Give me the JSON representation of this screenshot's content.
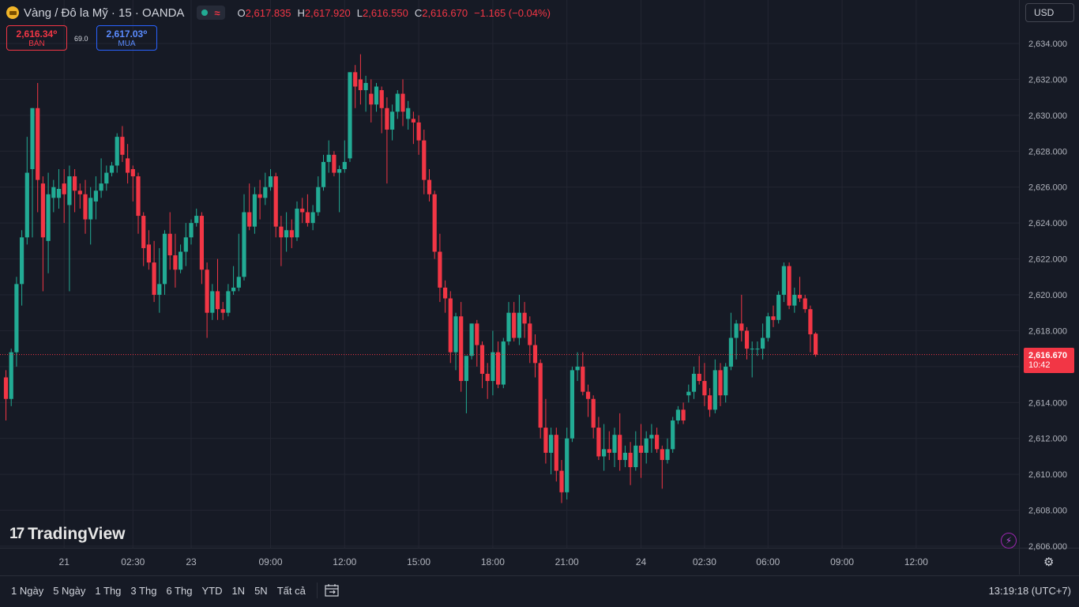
{
  "header": {
    "symbol": "Vàng / Đô la Mỹ · 15 · OANDA",
    "ohlc": [
      {
        "k": "O",
        "v": "2,617.835"
      },
      {
        "k": "H",
        "v": "2,617.920"
      },
      {
        "k": "L",
        "v": "2,616.550"
      },
      {
        "k": "C",
        "v": "2,616.670"
      }
    ],
    "change": "−1.165 (−0.04%)"
  },
  "trade": {
    "sell_price": "2,616.34⁰",
    "sell_label": "BÁN",
    "spread": "69.0",
    "buy_price": "2,617.03⁰",
    "buy_label": "MUA"
  },
  "currency": "USD",
  "logo_text": "TradingView",
  "last_price": {
    "value": "2,616.670",
    "countdown": "10:42"
  },
  "timeframes": [
    "1 Ngày",
    "5 Ngày",
    "1 Thg",
    "3 Thg",
    "6 Thg",
    "YTD",
    "1N",
    "5N",
    "Tất cả"
  ],
  "clock": "13:19:18 (UTC+7)",
  "colors": {
    "up": "#22ab94",
    "down": "#f23645",
    "background": "#161a25",
    "grid": "#232632"
  },
  "chart_data": {
    "type": "candlestick",
    "ylim": [
      2605.0,
      2635.0
    ],
    "y_ticks": [
      "2,606.000",
      "2,608.000",
      "2,610.000",
      "2,612.000",
      "2,614.000",
      "2,616.000",
      "2,618.000",
      "2,620.000",
      "2,622.000",
      "2,624.000",
      "2,626.000",
      "2,628.000",
      "2,630.000",
      "2,632.000",
      "2,634.000"
    ],
    "x_ticks": [
      {
        "label": "21",
        "index": 11
      },
      {
        "label": "02:30",
        "index": 24
      },
      {
        "label": "23",
        "index": 35
      },
      {
        "label": "09:00",
        "index": 50
      },
      {
        "label": "12:00",
        "index": 64
      },
      {
        "label": "15:00",
        "index": 78
      },
      {
        "label": "18:00",
        "index": 92
      },
      {
        "label": "21:00",
        "index": 106
      },
      {
        "label": "24",
        "index": 120
      },
      {
        "label": "02:30",
        "index": 132
      },
      {
        "label": "06:00",
        "index": 144
      },
      {
        "label": "09:00",
        "index": 158
      },
      {
        "label": "12:00",
        "index": 172
      }
    ],
    "last_price": 2616.67,
    "candles": [
      [
        2615.4,
        2615.8,
        2613.0,
        2614.2
      ],
      [
        2614.2,
        2617.0,
        2613.8,
        2616.8
      ],
      [
        2616.8,
        2621.0,
        2616.0,
        2620.6
      ],
      [
        2620.6,
        2623.6,
        2619.4,
        2623.2
      ],
      [
        2623.2,
        2628.8,
        2622.8,
        2626.8
      ],
      [
        2627.0,
        2630.4,
        2623.2,
        2630.4
      ],
      [
        2630.4,
        2631.8,
        2624.6,
        2626.4
      ],
      [
        2626.2,
        2626.6,
        2620.2,
        2623.2
      ],
      [
        2623.0,
        2626.8,
        2621.2,
        2625.6
      ],
      [
        2625.4,
        2626.4,
        2624.6,
        2626.0
      ],
      [
        2625.4,
        2627.0,
        2624.8,
        2625.9
      ],
      [
        2626.2,
        2627.0,
        2624.0,
        2625.6
      ],
      [
        2625.0,
        2627.2,
        2620.2,
        2626.6
      ],
      [
        2626.6,
        2627.0,
        2624.6,
        2625.8
      ],
      [
        2625.8,
        2626.2,
        2624.8,
        2625.6
      ],
      [
        2625.6,
        2626.4,
        2623.4,
        2624.2
      ],
      [
        2624.2,
        2626.0,
        2622.8,
        2625.4
      ],
      [
        2625.2,
        2626.6,
        2624.2,
        2625.8
      ],
      [
        2625.8,
        2627.6,
        2625.4,
        2626.2
      ],
      [
        2626.2,
        2627.2,
        2625.8,
        2626.8
      ],
      [
        2626.8,
        2627.4,
        2626.6,
        2627.2
      ],
      [
        2627.2,
        2629.0,
        2626.8,
        2628.8
      ],
      [
        2628.8,
        2629.4,
        2627.4,
        2627.8
      ],
      [
        2627.6,
        2628.4,
        2626.2,
        2626.8
      ],
      [
        2627.0,
        2627.2,
        2625.2,
        2626.6
      ],
      [
        2626.6,
        2626.8,
        2623.4,
        2624.4
      ],
      [
        2624.4,
        2624.6,
        2621.6,
        2622.6
      ],
      [
        2622.8,
        2623.6,
        2621.4,
        2621.8
      ],
      [
        2621.8,
        2623.0,
        2619.6,
        2620.0
      ],
      [
        2620.0,
        2622.6,
        2619.0,
        2620.6
      ],
      [
        2620.6,
        2623.6,
        2620.0,
        2623.4
      ],
      [
        2623.4,
        2624.6,
        2621.4,
        2622.2
      ],
      [
        2622.2,
        2623.4,
        2620.4,
        2621.4
      ],
      [
        2621.4,
        2622.8,
        2621.2,
        2622.4
      ],
      [
        2622.4,
        2624.0,
        2621.6,
        2623.2
      ],
      [
        2623.2,
        2624.2,
        2622.8,
        2624.0
      ],
      [
        2624.0,
        2624.8,
        2623.8,
        2624.4
      ],
      [
        2624.4,
        2624.6,
        2620.6,
        2621.4
      ],
      [
        2621.4,
        2621.8,
        2617.6,
        2619.0
      ],
      [
        2619.0,
        2620.6,
        2618.6,
        2620.2
      ],
      [
        2620.2,
        2622.0,
        2618.6,
        2619.2
      ],
      [
        2619.2,
        2619.6,
        2618.6,
        2619.0
      ],
      [
        2619.0,
        2620.6,
        2618.8,
        2620.2
      ],
      [
        2620.2,
        2621.6,
        2620.0,
        2620.4
      ],
      [
        2620.4,
        2623.4,
        2620.2,
        2621.0
      ],
      [
        2621.0,
        2625.6,
        2620.8,
        2624.6
      ],
      [
        2624.6,
        2626.2,
        2623.6,
        2623.8
      ],
      [
        2623.8,
        2626.0,
        2623.4,
        2625.6
      ],
      [
        2625.6,
        2626.4,
        2624.2,
        2625.4
      ],
      [
        2625.4,
        2626.8,
        2625.0,
        2626.0
      ],
      [
        2626.0,
        2627.0,
        2625.8,
        2626.6
      ],
      [
        2626.6,
        2626.8,
        2623.2,
        2623.8
      ],
      [
        2623.8,
        2624.4,
        2621.6,
        2623.2
      ],
      [
        2623.2,
        2624.6,
        2622.4,
        2623.6
      ],
      [
        2623.6,
        2624.2,
        2622.6,
        2623.2
      ],
      [
        2623.2,
        2625.2,
        2623.0,
        2624.8
      ],
      [
        2624.8,
        2625.4,
        2624.0,
        2624.6
      ],
      [
        2624.6,
        2625.6,
        2623.8,
        2624.0
      ],
      [
        2624.0,
        2625.0,
        2623.6,
        2624.6
      ],
      [
        2624.6,
        2626.6,
        2624.4,
        2626.0
      ],
      [
        2626.0,
        2627.8,
        2625.8,
        2627.4
      ],
      [
        2627.4,
        2628.6,
        2626.8,
        2627.8
      ],
      [
        2627.8,
        2628.0,
        2626.6,
        2626.8
      ],
      [
        2626.8,
        2627.2,
        2624.6,
        2627.0
      ],
      [
        2627.0,
        2628.6,
        2626.8,
        2627.4
      ],
      [
        2627.6,
        2632.4,
        2627.4,
        2632.4
      ],
      [
        2632.4,
        2632.8,
        2630.4,
        2631.6
      ],
      [
        2632.0,
        2633.4,
        2630.6,
        2631.4
      ],
      [
        2631.4,
        2632.2,
        2630.2,
        2631.8
      ],
      [
        2631.2,
        2632.0,
        2629.6,
        2630.6
      ],
      [
        2630.6,
        2631.8,
        2630.2,
        2631.6
      ],
      [
        2631.4,
        2631.6,
        2629.0,
        2630.4
      ],
      [
        2630.4,
        2631.0,
        2626.2,
        2629.2
      ],
      [
        2629.2,
        2630.6,
        2628.6,
        2630.2
      ],
      [
        2630.2,
        2631.4,
        2629.8,
        2631.2
      ],
      [
        2631.2,
        2632.0,
        2629.4,
        2630.2
      ],
      [
        2629.8,
        2630.8,
        2629.2,
        2630.4
      ],
      [
        2629.8,
        2630.2,
        2628.4,
        2629.6
      ],
      [
        2629.6,
        2630.0,
        2627.8,
        2628.6
      ],
      [
        2628.6,
        2629.2,
        2625.6,
        2626.4
      ],
      [
        2626.4,
        2627.0,
        2625.2,
        2625.6
      ],
      [
        2625.6,
        2625.8,
        2622.0,
        2622.4
      ],
      [
        2622.4,
        2623.4,
        2619.6,
        2620.4
      ],
      [
        2620.4,
        2620.8,
        2619.0,
        2619.8
      ],
      [
        2619.8,
        2620.2,
        2616.2,
        2616.8
      ],
      [
        2616.8,
        2619.0,
        2615.8,
        2618.8
      ],
      [
        2618.8,
        2619.6,
        2614.6,
        2615.2
      ],
      [
        2615.2,
        2616.4,
        2613.4,
        2616.6
      ],
      [
        2616.6,
        2618.4,
        2616.4,
        2618.4
      ],
      [
        2618.4,
        2618.6,
        2616.0,
        2617.2
      ],
      [
        2617.2,
        2617.4,
        2614.8,
        2615.6
      ],
      [
        2615.6,
        2616.2,
        2614.2,
        2615.2
      ],
      [
        2615.2,
        2618.0,
        2614.4,
        2616.8
      ],
      [
        2616.8,
        2617.4,
        2614.8,
        2615.0
      ],
      [
        2615.0,
        2617.6,
        2614.8,
        2617.4
      ],
      [
        2617.4,
        2619.6,
        2617.2,
        2619.0
      ],
      [
        2619.0,
        2619.6,
        2617.4,
        2617.6
      ],
      [
        2617.6,
        2620.0,
        2617.2,
        2619.0
      ],
      [
        2619.0,
        2619.6,
        2617.6,
        2618.4
      ],
      [
        2618.4,
        2618.8,
        2616.2,
        2617.2
      ],
      [
        2617.2,
        2617.8,
        2615.4,
        2616.2
      ],
      [
        2616.2,
        2616.4,
        2612.0,
        2612.6
      ],
      [
        2612.6,
        2614.2,
        2610.6,
        2611.2
      ],
      [
        2611.2,
        2612.6,
        2610.0,
        2612.2
      ],
      [
        2612.2,
        2612.6,
        2609.6,
        2610.2
      ],
      [
        2610.2,
        2610.8,
        2608.4,
        2609.0
      ],
      [
        2609.0,
        2612.6,
        2608.6,
        2612.0
      ],
      [
        2612.0,
        2616.0,
        2611.8,
        2615.8
      ],
      [
        2615.8,
        2616.8,
        2615.2,
        2616.0
      ],
      [
        2616.0,
        2616.8,
        2614.4,
        2614.6
      ],
      [
        2614.6,
        2615.0,
        2613.2,
        2614.2
      ],
      [
        2614.2,
        2614.4,
        2612.0,
        2612.6
      ],
      [
        2612.6,
        2613.2,
        2610.8,
        2611.0
      ],
      [
        2611.0,
        2612.8,
        2610.2,
        2611.4
      ],
      [
        2611.4,
        2612.4,
        2610.8,
        2611.2
      ],
      [
        2611.2,
        2612.6,
        2610.4,
        2612.2
      ],
      [
        2612.2,
        2613.4,
        2610.2,
        2610.8
      ],
      [
        2610.8,
        2611.6,
        2610.4,
        2611.2
      ],
      [
        2611.2,
        2611.8,
        2609.4,
        2610.4
      ],
      [
        2610.4,
        2612.4,
        2610.2,
        2611.6
      ],
      [
        2611.6,
        2612.8,
        2609.8,
        2611.2
      ],
      [
        2611.2,
        2612.4,
        2610.6,
        2612.0
      ],
      [
        2612.0,
        2612.8,
        2611.2,
        2612.2
      ],
      [
        2612.2,
        2612.6,
        2611.2,
        2611.4
      ],
      [
        2611.4,
        2611.6,
        2609.2,
        2610.8
      ],
      [
        2610.8,
        2612.0,
        2610.6,
        2611.4
      ],
      [
        2611.4,
        2613.2,
        2611.2,
        2613.0
      ],
      [
        2613.0,
        2613.8,
        2612.8,
        2613.6
      ],
      [
        2613.6,
        2614.0,
        2612.8,
        2613.0
      ],
      [
        2614.4,
        2615.0,
        2614.0,
        2614.6
      ],
      [
        2614.6,
        2616.0,
        2614.2,
        2615.6
      ],
      [
        2615.6,
        2616.6,
        2615.0,
        2615.2
      ],
      [
        2615.2,
        2616.2,
        2613.8,
        2614.4
      ],
      [
        2614.4,
        2614.8,
        2613.2,
        2613.6
      ],
      [
        2613.6,
        2616.4,
        2613.4,
        2615.8
      ],
      [
        2615.8,
        2616.2,
        2613.8,
        2614.4
      ],
      [
        2614.4,
        2616.2,
        2614.0,
        2616.0
      ],
      [
        2616.0,
        2619.0,
        2615.8,
        2617.6
      ],
      [
        2617.6,
        2618.6,
        2616.4,
        2618.4
      ],
      [
        2618.4,
        2620.0,
        2617.4,
        2618.0
      ],
      [
        2618.0,
        2618.2,
        2616.4,
        2617.0
      ],
      [
        2617.0,
        2617.4,
        2615.4,
        2617.0
      ],
      [
        2617.0,
        2617.4,
        2616.6,
        2617.0
      ],
      [
        2617.0,
        2618.4,
        2616.4,
        2617.6
      ],
      [
        2617.6,
        2619.0,
        2617.4,
        2618.8
      ],
      [
        2618.8,
        2619.4,
        2618.2,
        2618.6
      ],
      [
        2618.6,
        2620.2,
        2618.4,
        2620.0
      ],
      [
        2620.0,
        2621.8,
        2619.6,
        2621.6
      ],
      [
        2621.6,
        2621.8,
        2619.2,
        2619.4
      ],
      [
        2619.4,
        2620.4,
        2619.0,
        2620.0
      ],
      [
        2620.0,
        2621.0,
        2619.6,
        2619.8
      ],
      [
        2619.8,
        2620.0,
        2619.0,
        2619.2
      ],
      [
        2619.2,
        2619.4,
        2616.8,
        2617.8
      ],
      [
        2617.835,
        2617.92,
        2616.55,
        2616.67
      ]
    ]
  }
}
